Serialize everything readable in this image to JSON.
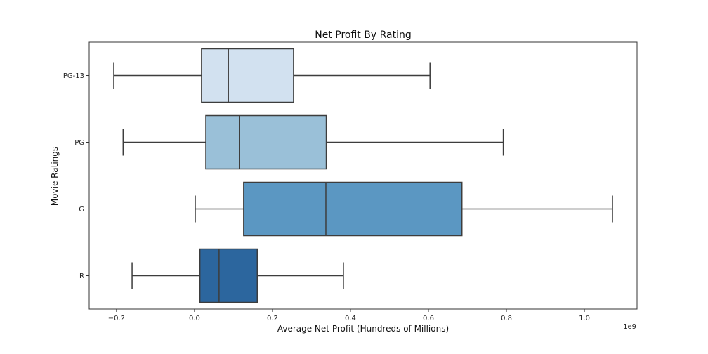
{
  "chart_data": {
    "type": "boxplot",
    "orientation": "horizontal",
    "title": "Net Profit By Rating",
    "xlabel": "Average Net Profit (Hundreds of Millions)",
    "ylabel": "Movie Ratings",
    "x_offset_label": "1e9",
    "x_scale_factor": 1000000000,
    "xlim": [
      -0.27,
      1.135
    ],
    "x_ticks": [
      -0.2,
      0.0,
      0.2,
      0.4,
      0.6,
      0.8,
      1.0
    ],
    "x_tick_labels": [
      "−0.2",
      "0.0",
      "0.2",
      "0.4",
      "0.6",
      "0.8",
      "1.0"
    ],
    "categories": [
      "PG-13",
      "PG",
      "G",
      "R"
    ],
    "boxes": [
      {
        "category": "PG-13",
        "whisker_low": -0.207,
        "q1": 0.018,
        "median": 0.087,
        "q3": 0.254,
        "whisker_high": 0.604,
        "color": "#d2e1f0"
      },
      {
        "category": "PG",
        "whisker_low": -0.183,
        "q1": 0.029,
        "median": 0.115,
        "q3": 0.338,
        "whisker_high": 0.792,
        "color": "#9ac0d8"
      },
      {
        "category": "G",
        "whisker_low": 0.002,
        "q1": 0.126,
        "median": 0.337,
        "q3": 0.686,
        "whisker_high": 1.072,
        "color": "#5b97c2"
      },
      {
        "category": "R",
        "whisker_low": -0.16,
        "q1": 0.014,
        "median": 0.063,
        "q3": 0.161,
        "whisker_high": 0.382,
        "color": "#2c669e"
      }
    ],
    "grid": false,
    "legend": "none"
  }
}
